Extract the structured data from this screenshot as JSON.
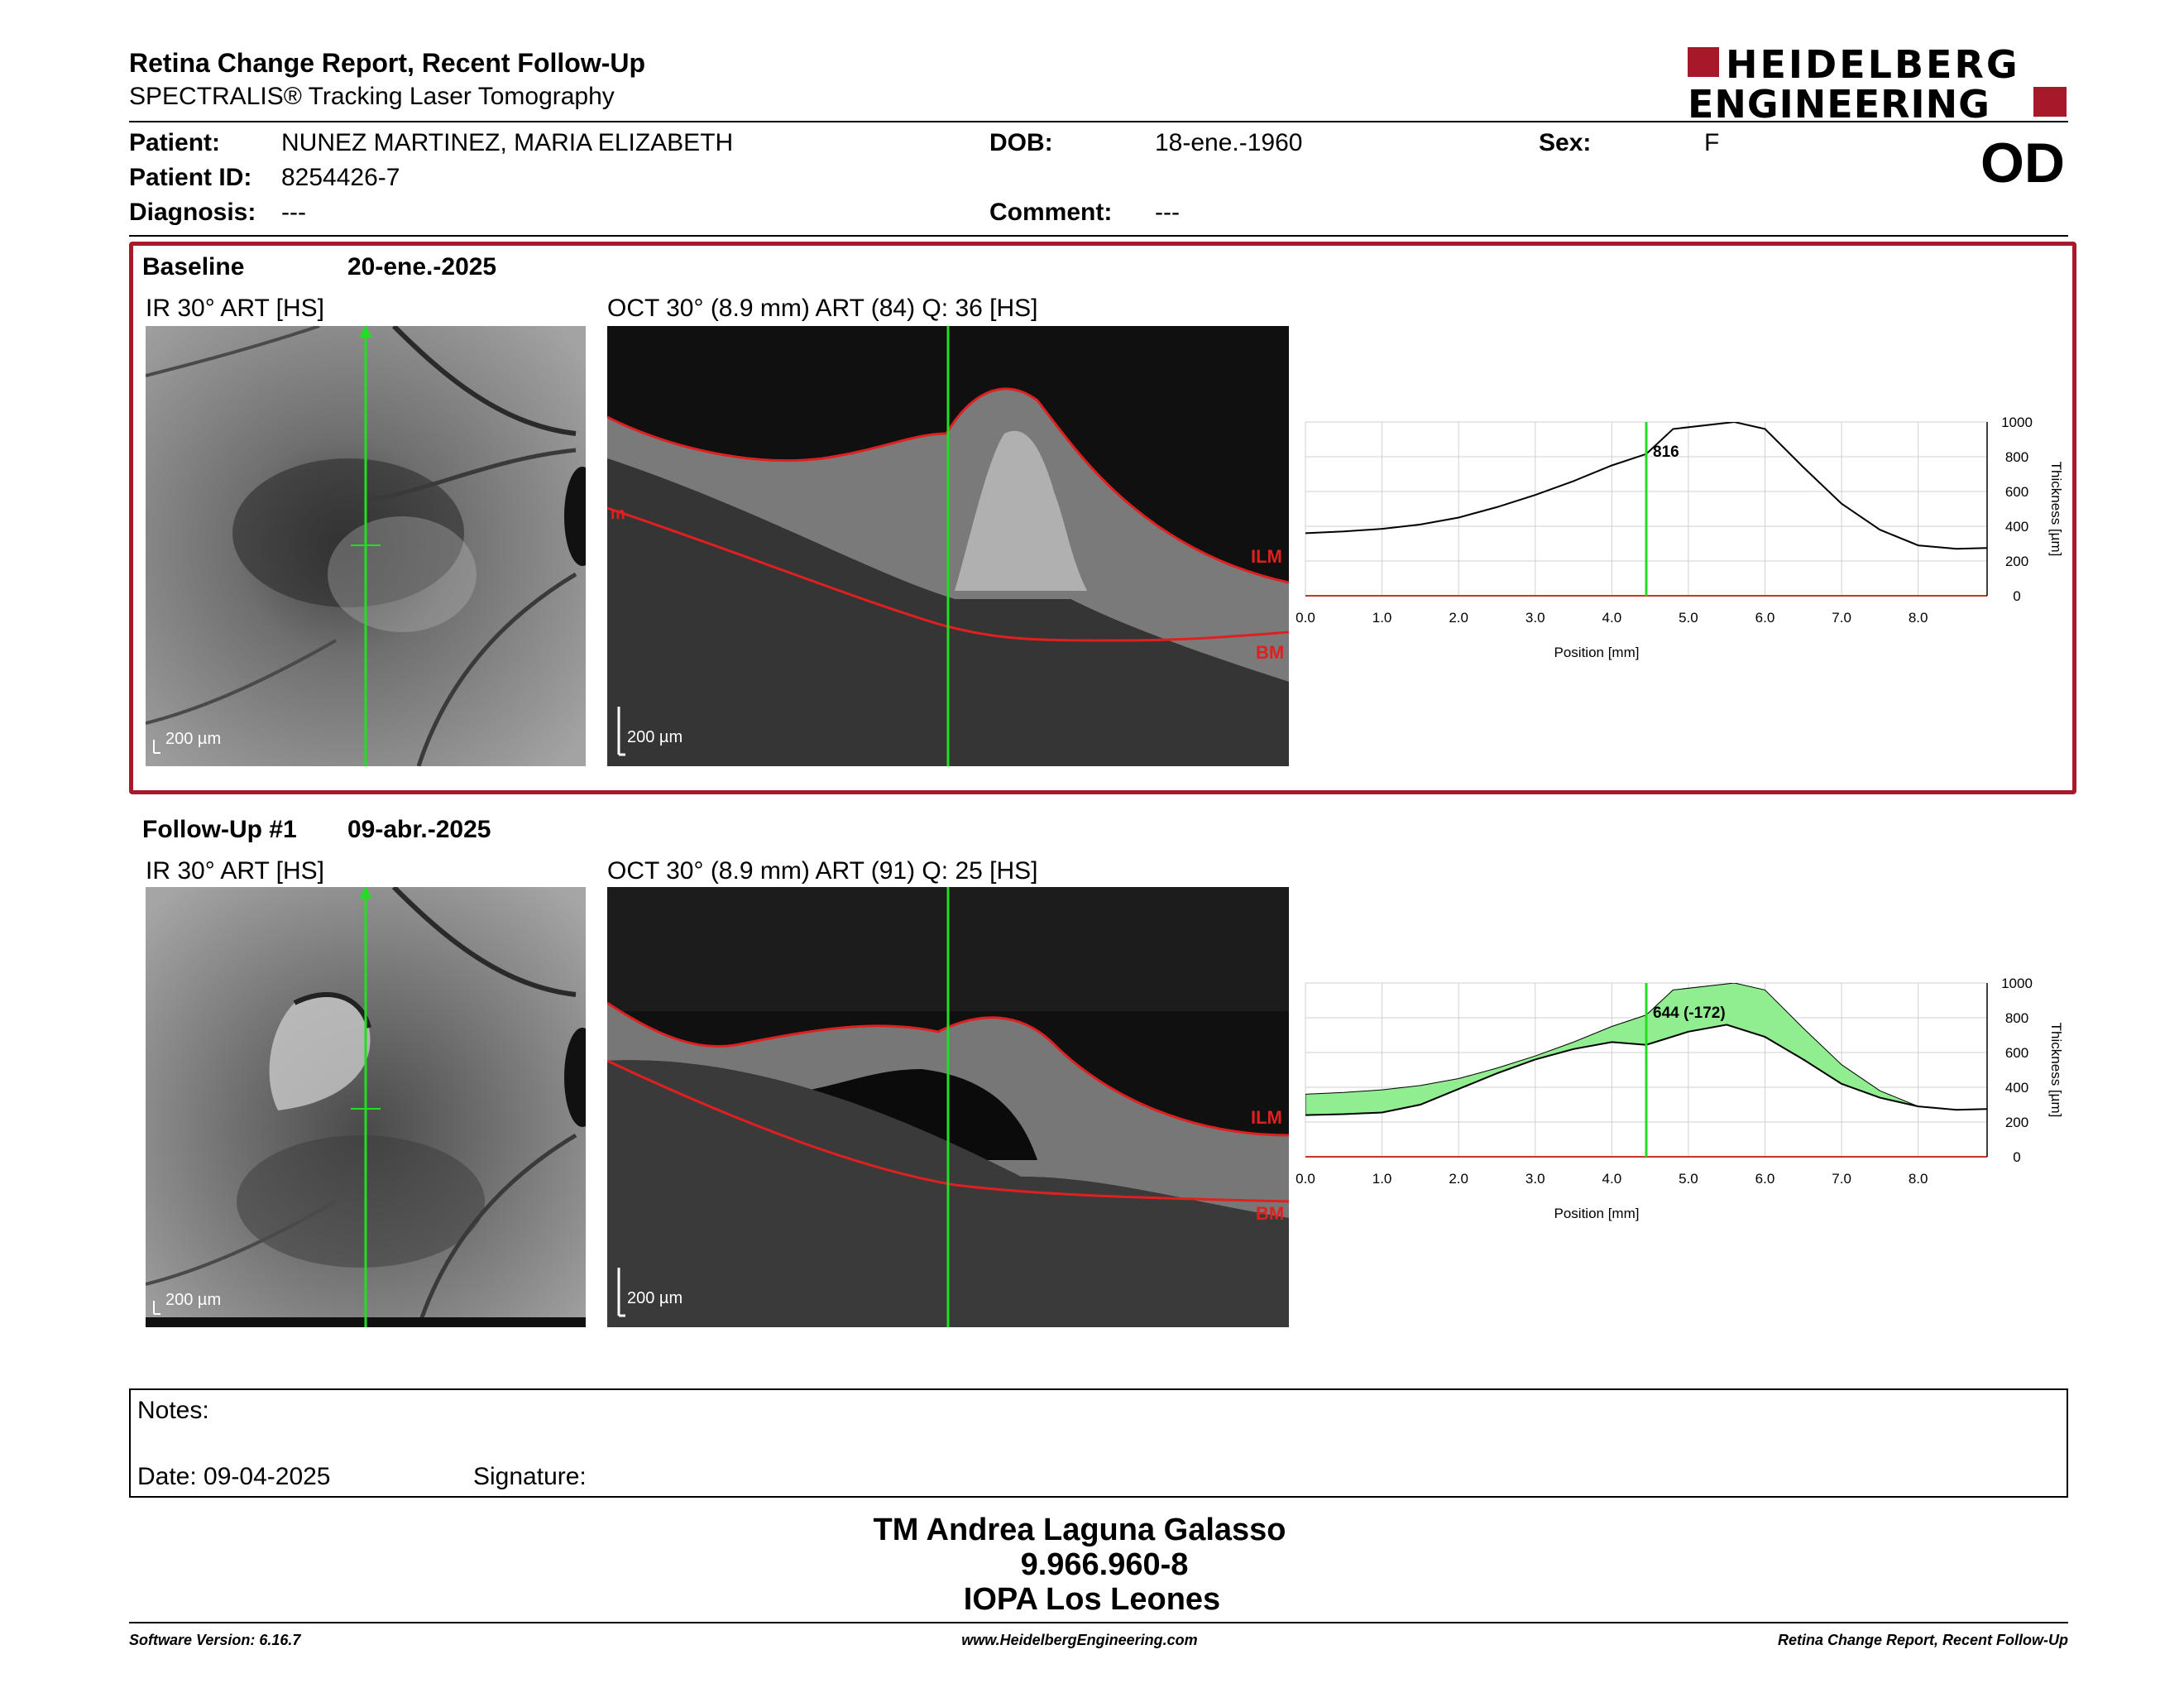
{
  "header": {
    "title": "Retina Change Report, Recent Follow-Up",
    "subtitle": "SPECTRALIS® Tracking Laser Tomography",
    "logo_line1": "HEIDELBERG",
    "logo_line2": "ENGINEERING"
  },
  "patient": {
    "patient_label": "Patient:",
    "patient_value": "NUNEZ MARTINEZ, MARIA ELIZABETH",
    "id_label": "Patient ID:",
    "id_value": "8254426-7",
    "diagnosis_label": "Diagnosis:",
    "diagnosis_value": "---",
    "dob_label": "DOB:",
    "dob_value": "18-ene.-1960",
    "comment_label": "Comment:",
    "comment_value": "---",
    "sex_label": "Sex:",
    "sex_value": "F",
    "eye": "OD"
  },
  "baseline": {
    "label": "Baseline",
    "date": "20-ene.-2025",
    "ir_label": "IR 30° ART [HS]",
    "oct_label": "OCT 30° (8.9 mm) ART (84) Q: 36 [HS]",
    "scale": "200 µm",
    "ilm": "ILM",
    "bm": "BM",
    "ilm_left": "m",
    "marker_value": "816"
  },
  "followup": {
    "label": "Follow-Up #1",
    "date": "09-abr.-2025",
    "ir_label": "IR 30° ART [HS]",
    "oct_label": "OCT 30° (8.9 mm) ART (91) Q: 25 [HS]",
    "scale": "200 µm",
    "ilm": "ILM",
    "bm": "BM",
    "marker_value": "644 (-172)"
  },
  "chart_axes": {
    "x_ticks": [
      "0.0",
      "1.0",
      "2.0",
      "3.0",
      "4.0",
      "5.0",
      "6.0",
      "7.0",
      "8.0"
    ],
    "y_ticks": [
      "0",
      "200",
      "400",
      "600",
      "800",
      "1000"
    ],
    "xlabel": "Position [mm]",
    "ylabel": "Thickness [µm]"
  },
  "chart_data": [
    {
      "type": "line",
      "xlabel": "Position [mm]",
      "ylabel": "Thickness [µm]",
      "xlim": [
        0,
        8.9
      ],
      "ylim": [
        0,
        1000
      ],
      "marker_x": 4.45,
      "marker_label": "816",
      "series": [
        {
          "x": [
            0,
            0.5,
            1,
            1.5,
            2,
            2.5,
            3,
            3.5,
            4,
            4.45,
            4.8,
            5.6,
            6,
            6.5,
            7,
            7.5,
            8,
            8.5,
            8.9
          ],
          "values": [
            360,
            370,
            385,
            410,
            450,
            510,
            580,
            660,
            750,
            816,
            960,
            1050,
            960,
            740,
            530,
            380,
            290,
            270,
            275
          ]
        }
      ]
    },
    {
      "type": "area",
      "xlabel": "Position [mm]",
      "ylabel": "Thickness [µm]",
      "xlim": [
        0,
        8.9
      ],
      "ylim": [
        0,
        1000
      ],
      "marker_x": 4.45,
      "marker_label": "644 (-172)",
      "series": [
        {
          "x": [
            0,
            0.5,
            1,
            1.5,
            2,
            2.5,
            3,
            3.5,
            4,
            4.45,
            5,
            5.5,
            6,
            6.5,
            7,
            7.5,
            8,
            8.5,
            8.9
          ],
          "values": [
            240,
            245,
            255,
            300,
            390,
            480,
            560,
            620,
            660,
            644,
            720,
            760,
            690,
            560,
            420,
            340,
            290,
            270,
            275
          ]
        },
        {
          "x": [
            0,
            0.5,
            1,
            1.5,
            2,
            2.5,
            3,
            3.5,
            4,
            4.45,
            4.8,
            5.6,
            6,
            6.5,
            7,
            7.5,
            8,
            8.5,
            8.9
          ],
          "values": [
            360,
            370,
            385,
            410,
            450,
            510,
            580,
            660,
            750,
            816,
            960,
            1050,
            960,
            740,
            530,
            380,
            290,
            270,
            275
          ]
        }
      ]
    }
  ],
  "notes": {
    "notes_label": "Notes:",
    "date_label": "Date: 09-04-2025",
    "signature_label": "Signature:"
  },
  "signoff": {
    "name": "TM Andrea Laguna Galasso",
    "id": "9.966.960-8",
    "clinic": "IOPA Los Leones"
  },
  "footer": {
    "left": "Software Version: 6.16.7",
    "center": "www.HeidelbergEngineering.com",
    "right": "Retina Change Report, Recent Follow-Up"
  },
  "colors": {
    "accent_red": "#a7192a",
    "marker_green": "#22dd22",
    "fill_green": "#90ee90",
    "segment_red": "#e02020"
  }
}
